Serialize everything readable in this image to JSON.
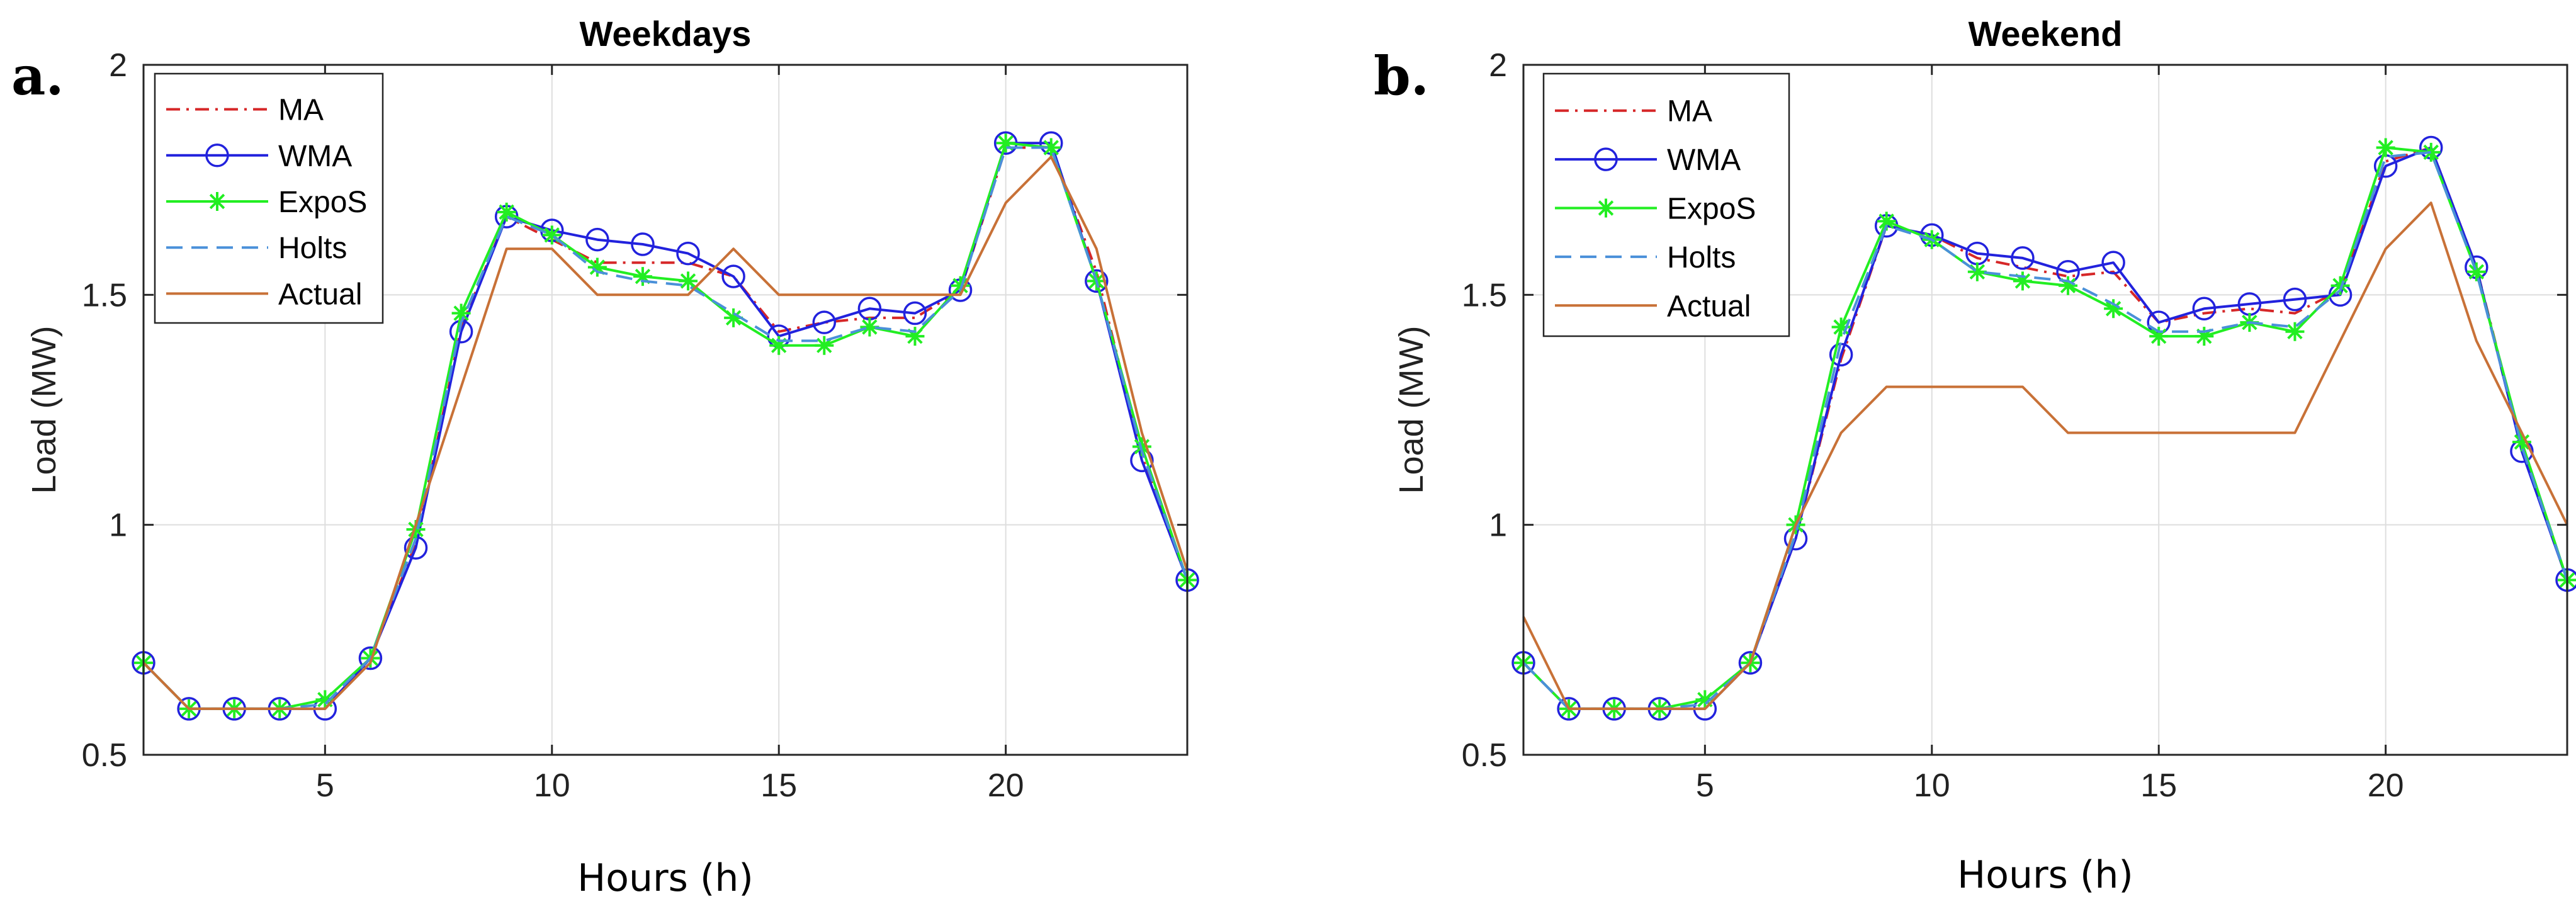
{
  "chart_data": [
    {
      "type": "line",
      "panel_label": "a.",
      "title": "Weekdays",
      "xlabel": "Hours (h)",
      "ylabel": "Load (MW)",
      "xlim": [
        1,
        24
      ],
      "ylim": [
        0.5,
        2
      ],
      "xticks": [
        5,
        10,
        15,
        20
      ],
      "xtick_labels": [
        "5",
        "10",
        "15",
        "20"
      ],
      "yticks": [
        0.5,
        1,
        1.5,
        2
      ],
      "ytick_labels": [
        "0.5",
        "1",
        "1.5",
        "2"
      ],
      "grid": true,
      "legend_position": "top-left",
      "x": [
        1,
        2,
        3,
        4,
        5,
        6,
        7,
        8,
        9,
        10,
        11,
        12,
        13,
        14,
        15,
        16,
        17,
        18,
        19,
        20,
        21,
        22,
        23,
        24
      ],
      "series": [
        {
          "name": "MA",
          "color": "#d62728",
          "style": "dashdot",
          "marker": "none",
          "values": [
            0.7,
            0.6,
            0.6,
            0.6,
            0.6,
            0.71,
            0.96,
            1.43,
            1.67,
            1.62,
            1.57,
            1.57,
            1.57,
            1.54,
            1.42,
            1.44,
            1.45,
            1.45,
            1.51,
            1.82,
            1.82,
            1.55,
            1.15,
            0.88
          ]
        },
        {
          "name": "WMA",
          "color": "#2222dd",
          "style": "solid",
          "marker": "circle",
          "values": [
            0.7,
            0.6,
            0.6,
            0.6,
            0.6,
            0.71,
            0.95,
            1.42,
            1.67,
            1.64,
            1.62,
            1.61,
            1.59,
            1.54,
            1.41,
            1.44,
            1.47,
            1.46,
            1.51,
            1.83,
            1.83,
            1.53,
            1.14,
            0.88
          ]
        },
        {
          "name": "ExpoS",
          "color": "#22ee22",
          "style": "solid",
          "marker": "star",
          "values": [
            0.7,
            0.6,
            0.6,
            0.6,
            0.62,
            0.71,
            0.99,
            1.46,
            1.68,
            1.63,
            1.56,
            1.54,
            1.53,
            1.45,
            1.39,
            1.39,
            1.43,
            1.41,
            1.52,
            1.83,
            1.82,
            1.53,
            1.17,
            0.88
          ]
        },
        {
          "name": "Holts",
          "color": "#4a90d9",
          "style": "dashed",
          "marker": "none",
          "values": [
            0.7,
            0.6,
            0.6,
            0.6,
            0.61,
            0.71,
            0.97,
            1.44,
            1.67,
            1.63,
            1.55,
            1.53,
            1.52,
            1.46,
            1.4,
            1.4,
            1.43,
            1.42,
            1.51,
            1.82,
            1.82,
            1.53,
            1.16,
            0.88
          ]
        },
        {
          "name": "Actual",
          "color": "#c87137",
          "style": "solid",
          "marker": "none",
          "values": [
            0.7,
            0.6,
            0.6,
            0.6,
            0.6,
            0.7,
            1.0,
            1.3,
            1.6,
            1.6,
            1.5,
            1.5,
            1.5,
            1.6,
            1.5,
            1.5,
            1.5,
            1.5,
            1.5,
            1.7,
            1.8,
            1.6,
            1.2,
            0.9
          ]
        }
      ]
    },
    {
      "type": "line",
      "panel_label": "b.",
      "title": "Weekend",
      "xlabel": "Hours (h)",
      "ylabel": "Load (MW)",
      "xlim": [
        1,
        24
      ],
      "ylim": [
        0.5,
        2
      ],
      "xticks": [
        5,
        10,
        15,
        20
      ],
      "xtick_labels": [
        "5",
        "10",
        "15",
        "20"
      ],
      "yticks": [
        0.5,
        1,
        1.5,
        2
      ],
      "ytick_labels": [
        "0.5",
        "1",
        "1.5",
        "2"
      ],
      "grid": true,
      "legend_position": "top-left",
      "x": [
        1,
        2,
        3,
        4,
        5,
        6,
        7,
        8,
        9,
        10,
        11,
        12,
        13,
        14,
        15,
        16,
        17,
        18,
        19,
        20,
        21,
        22,
        23,
        24
      ],
      "series": [
        {
          "name": "MA",
          "color": "#d62728",
          "style": "dashdot",
          "marker": "none",
          "values": [
            0.7,
            0.6,
            0.6,
            0.6,
            0.6,
            0.7,
            0.97,
            1.36,
            1.65,
            1.63,
            1.58,
            1.56,
            1.54,
            1.55,
            1.44,
            1.46,
            1.47,
            1.46,
            1.51,
            1.79,
            1.82,
            1.56,
            1.17,
            0.88
          ]
        },
        {
          "name": "WMA",
          "color": "#2222dd",
          "style": "solid",
          "marker": "circle",
          "values": [
            0.7,
            0.6,
            0.6,
            0.6,
            0.6,
            0.7,
            0.97,
            1.37,
            1.65,
            1.63,
            1.59,
            1.58,
            1.55,
            1.57,
            1.44,
            1.47,
            1.48,
            1.49,
            1.5,
            1.78,
            1.82,
            1.56,
            1.16,
            0.88
          ]
        },
        {
          "name": "ExpoS",
          "color": "#22ee22",
          "style": "solid",
          "marker": "star",
          "values": [
            0.7,
            0.6,
            0.6,
            0.6,
            0.62,
            0.7,
            1.0,
            1.43,
            1.66,
            1.62,
            1.55,
            1.53,
            1.52,
            1.47,
            1.41,
            1.41,
            1.44,
            1.42,
            1.52,
            1.82,
            1.81,
            1.55,
            1.18,
            0.88
          ]
        },
        {
          "name": "Holts",
          "color": "#4a90d9",
          "style": "dashed",
          "marker": "none",
          "values": [
            0.7,
            0.6,
            0.6,
            0.6,
            0.61,
            0.7,
            0.98,
            1.4,
            1.65,
            1.62,
            1.55,
            1.54,
            1.53,
            1.48,
            1.42,
            1.42,
            1.44,
            1.43,
            1.51,
            1.8,
            1.81,
            1.55,
            1.17,
            0.88
          ]
        },
        {
          "name": "Actual",
          "color": "#c87137",
          "style": "solid",
          "marker": "none",
          "values": [
            0.8,
            0.6,
            0.6,
            0.6,
            0.6,
            0.7,
            1.0,
            1.2,
            1.3,
            1.3,
            1.3,
            1.3,
            1.2,
            1.2,
            1.2,
            1.2,
            1.2,
            1.2,
            1.4,
            1.6,
            1.7,
            1.4,
            1.2,
            1.0
          ]
        }
      ]
    }
  ]
}
